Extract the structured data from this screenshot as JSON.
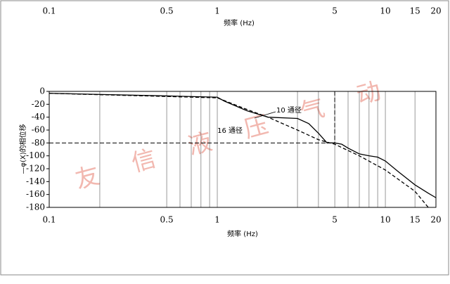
{
  "chart_data": {
    "type": "line",
    "xlabel": "频率 (Hz)",
    "top_xlabel": "频率 (Hz)",
    "ylabel": "—φ(X)的相位移",
    "log_x": true,
    "xlim": [
      0.1,
      20
    ],
    "xticks": [
      0.1,
      0.5,
      1,
      5,
      10,
      15,
      20
    ],
    "x_minor_grid": [
      0.2,
      0.6,
      0.7,
      0.8,
      0.9,
      3,
      4,
      6,
      7,
      8,
      9
    ],
    "ylim": [
      -180,
      0
    ],
    "yticks": [
      0,
      -20,
      -40,
      -60,
      -80,
      -100,
      -120,
      -140,
      -160,
      -180
    ],
    "reference_y": -80,
    "reference_x": 5,
    "series": [
      {
        "name": "10 通径",
        "color": "#000000",
        "dash": false,
        "x": [
          0.1,
          0.5,
          1,
          1.1,
          1.5,
          2,
          3,
          3.5,
          4,
          4.5,
          5,
          5.5,
          6,
          7,
          8,
          9,
          10,
          12,
          15,
          18,
          20
        ],
        "values": [
          -3,
          -7,
          -9,
          -15,
          -30,
          -40,
          -42,
          -50,
          -65,
          -80,
          -80,
          -82,
          -88,
          -97,
          -100,
          -102,
          -108,
          -125,
          -145,
          -158,
          -165
        ]
      },
      {
        "name": "16 通径",
        "color": "#000000",
        "dash": true,
        "x": [
          0.1,
          1,
          1.5,
          2,
          3,
          4,
          5,
          7,
          10,
          15,
          18
        ],
        "values": [
          -3,
          -10,
          -28,
          -40,
          -60,
          -75,
          -82,
          -100,
          -122,
          -155,
          -180
        ]
      }
    ],
    "watermark": [
      "友",
      "信",
      "液",
      "压",
      "气",
      "动"
    ],
    "watermark_color": "#f2b8b0"
  }
}
